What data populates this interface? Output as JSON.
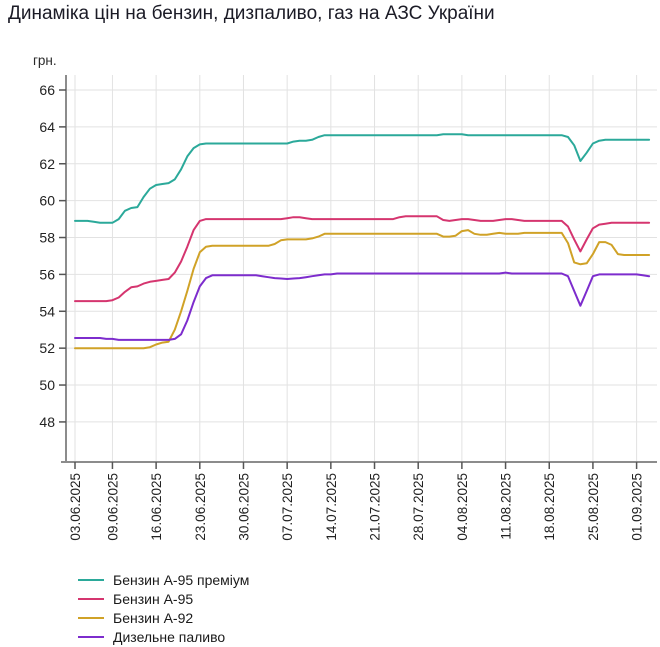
{
  "chart_data": {
    "type": "line",
    "title": "Динаміка цін на бензин, дизпаливо, газ на АЗС України",
    "y_unit": "грн.",
    "xlabel": "",
    "ylabel": "грн.",
    "x_start_date": "03.06.2025",
    "x_frequency": "daily",
    "x_tick_labels": [
      "03.06.2025",
      "09.06.2025",
      "16.06.2025",
      "23.06.2025",
      "30.06.2025",
      "07.07.2025",
      "14.07.2025",
      "21.07.2025",
      "28.07.2025",
      "04.08.2025",
      "11.08.2025",
      "18.08.2025",
      "25.08.2025",
      "01.09.2025"
    ],
    "x_tick_day_offsets": [
      0,
      6,
      13,
      20,
      27,
      34,
      41,
      48,
      55,
      62,
      69,
      76,
      83,
      90
    ],
    "y_ticks": [
      48,
      50,
      52,
      54,
      56,
      58,
      60,
      62,
      64,
      66
    ],
    "ylim": [
      45.8,
      66.8
    ],
    "grid": true,
    "legend_position": "bottom-left",
    "axis_color": "#8c8c8c",
    "grid_color": "#e2e2e2",
    "tick_label_color": "#222222",
    "series": [
      {
        "name": "Бензин А-95 преміум",
        "color": "#2BA99A",
        "values": [
          58.9,
          58.9,
          58.9,
          58.85,
          58.8,
          58.8,
          58.8,
          59.0,
          59.45,
          59.6,
          59.65,
          60.2,
          60.65,
          60.85,
          60.9,
          60.95,
          61.15,
          61.7,
          62.4,
          62.85,
          63.05,
          63.1,
          63.1,
          63.1,
          63.1,
          63.1,
          63.1,
          63.1,
          63.1,
          63.1,
          63.1,
          63.1,
          63.1,
          63.1,
          63.1,
          63.2,
          63.25,
          63.25,
          63.3,
          63.45,
          63.55,
          63.55,
          63.55,
          63.55,
          63.55,
          63.55,
          63.55,
          63.55,
          63.55,
          63.55,
          63.55,
          63.55,
          63.55,
          63.55,
          63.55,
          63.55,
          63.55,
          63.55,
          63.55,
          63.6,
          63.6,
          63.6,
          63.6,
          63.55,
          63.55,
          63.55,
          63.55,
          63.55,
          63.55,
          63.55,
          63.55,
          63.55,
          63.55,
          63.55,
          63.55,
          63.55,
          63.55,
          63.55,
          63.55,
          63.45,
          63.0,
          62.15,
          62.6,
          63.1,
          63.25,
          63.3,
          63.3,
          63.3,
          63.3,
          63.3,
          63.3,
          63.3,
          63.3
        ]
      },
      {
        "name": "Бензин А-95",
        "color": "#D5356F",
        "values": [
          54.55,
          54.55,
          54.55,
          54.55,
          54.55,
          54.55,
          54.6,
          54.75,
          55.05,
          55.3,
          55.35,
          55.5,
          55.6,
          55.65,
          55.7,
          55.75,
          56.1,
          56.7,
          57.5,
          58.4,
          58.9,
          59.0,
          59.0,
          59.0,
          59.0,
          59.0,
          59.0,
          59.0,
          59.0,
          59.0,
          59.0,
          59.0,
          59.0,
          59.0,
          59.05,
          59.1,
          59.1,
          59.05,
          59.0,
          59.0,
          59.0,
          59.0,
          59.0,
          59.0,
          59.0,
          59.0,
          59.0,
          59.0,
          59.0,
          59.0,
          59.0,
          59.0,
          59.1,
          59.15,
          59.15,
          59.15,
          59.15,
          59.15,
          59.15,
          58.95,
          58.9,
          58.95,
          59.0,
          59.0,
          58.95,
          58.9,
          58.9,
          58.9,
          58.95,
          59.0,
          59.0,
          58.95,
          58.9,
          58.9,
          58.9,
          58.9,
          58.9,
          58.9,
          58.9,
          58.6,
          57.9,
          57.25,
          57.9,
          58.5,
          58.7,
          58.75,
          58.8,
          58.8,
          58.8,
          58.8,
          58.8,
          58.8,
          58.8
        ]
      },
      {
        "name": "Бензин А-92",
        "color": "#D0A227",
        "values": [
          52.0,
          52.0,
          52.0,
          52.0,
          52.0,
          52.0,
          52.0,
          52.0,
          52.0,
          52.0,
          52.0,
          52.0,
          52.05,
          52.2,
          52.3,
          52.35,
          53.0,
          54.0,
          55.1,
          56.3,
          57.2,
          57.5,
          57.55,
          57.55,
          57.55,
          57.55,
          57.55,
          57.55,
          57.55,
          57.55,
          57.55,
          57.55,
          57.65,
          57.85,
          57.9,
          57.9,
          57.9,
          57.9,
          57.95,
          58.05,
          58.2,
          58.2,
          58.2,
          58.2,
          58.2,
          58.2,
          58.2,
          58.2,
          58.2,
          58.2,
          58.2,
          58.2,
          58.2,
          58.2,
          58.2,
          58.2,
          58.2,
          58.2,
          58.2,
          58.05,
          58.05,
          58.1,
          58.35,
          58.4,
          58.2,
          58.15,
          58.15,
          58.2,
          58.25,
          58.2,
          58.2,
          58.2,
          58.25,
          58.25,
          58.25,
          58.25,
          58.25,
          58.25,
          58.25,
          57.7,
          56.65,
          56.55,
          56.6,
          57.1,
          57.75,
          57.75,
          57.6,
          57.1,
          57.05,
          57.05,
          57.05,
          57.05,
          57.05
        ]
      },
      {
        "name": "Дизельне паливо",
        "color": "#7D2CCD",
        "values": [
          52.55,
          52.55,
          52.55,
          52.55,
          52.55,
          52.5,
          52.5,
          52.45,
          52.45,
          52.45,
          52.45,
          52.45,
          52.45,
          52.45,
          52.45,
          52.45,
          52.5,
          52.75,
          53.5,
          54.5,
          55.35,
          55.8,
          55.95,
          55.95,
          55.95,
          55.95,
          55.95,
          55.95,
          55.95,
          55.95,
          55.9,
          55.85,
          55.8,
          55.78,
          55.75,
          55.78,
          55.8,
          55.85,
          55.9,
          55.95,
          56.0,
          56.0,
          56.05,
          56.05,
          56.05,
          56.05,
          56.05,
          56.05,
          56.05,
          56.05,
          56.05,
          56.05,
          56.05,
          56.05,
          56.05,
          56.05,
          56.05,
          56.05,
          56.05,
          56.05,
          56.05,
          56.05,
          56.05,
          56.05,
          56.05,
          56.05,
          56.05,
          56.05,
          56.05,
          56.1,
          56.05,
          56.05,
          56.05,
          56.05,
          56.05,
          56.05,
          56.05,
          56.05,
          56.05,
          55.9,
          55.1,
          54.3,
          55.1,
          55.9,
          56.0,
          56.0,
          56.0,
          56.0,
          56.0,
          56.0,
          56.0,
          55.95,
          55.9
        ]
      }
    ]
  }
}
